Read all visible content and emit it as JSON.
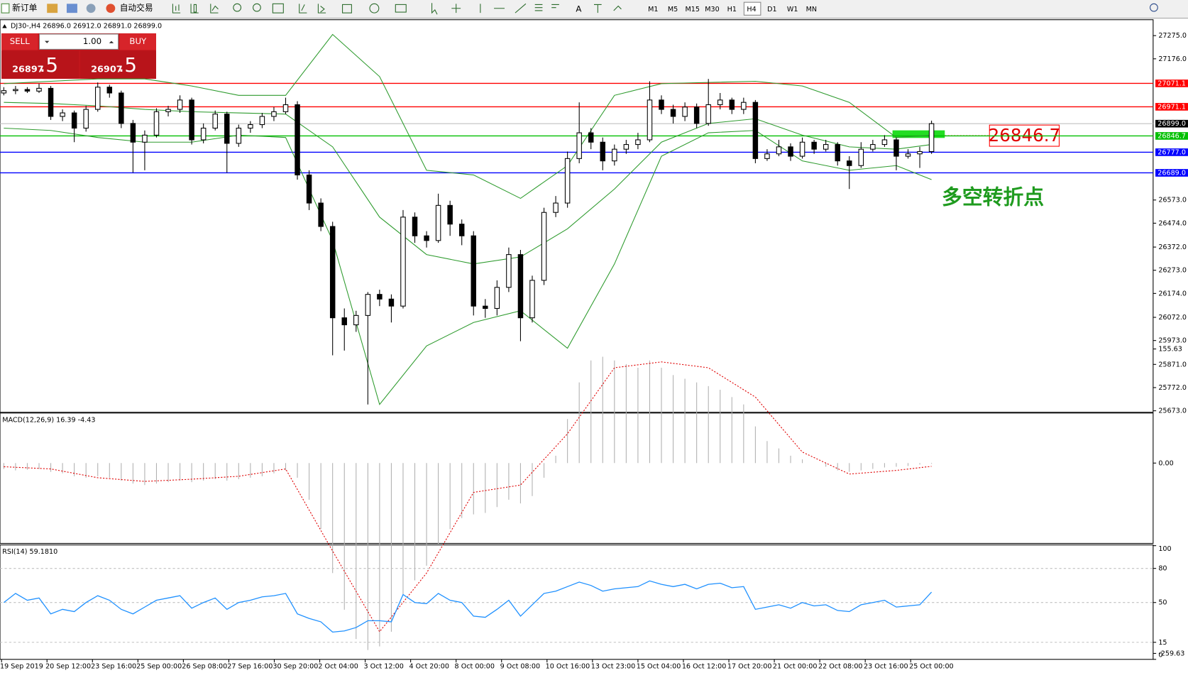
{
  "toolbar": {
    "new_order": "新订单",
    "auto_trading": "自动交易",
    "timeframes": [
      "M1",
      "M5",
      "M15",
      "M30",
      "H1",
      "H4",
      "D1",
      "W1",
      "MN"
    ]
  },
  "trade_panel": {
    "sell": "SELL",
    "buy": "BUY",
    "lots": "1.00",
    "bid_main": "26897",
    "bid_tail": ".5",
    "ask_main": "26907",
    "ask_tail": ".5"
  },
  "annotations": {
    "price_box": "26846.7",
    "note": "多空转折点"
  },
  "chart_data": {
    "type": "candlestick",
    "header": "DJ30-,H4  26896.0 26912.0 26891.0 26899.0",
    "ylim": [
      25673,
      27275
    ],
    "yticks": [
      {
        "value": 27275,
        "label": "27275.0"
      },
      {
        "value": 27176,
        "label": "27176.0"
      },
      {
        "value": 26573,
        "label": "26573.0"
      },
      {
        "value": 26474,
        "label": "26474.0"
      },
      {
        "value": 26372,
        "label": "26372.0"
      },
      {
        "value": 26273,
        "label": "26273.0"
      },
      {
        "value": 26174,
        "label": "26174.0"
      },
      {
        "value": 26072,
        "label": "26072.0"
      },
      {
        "value": 25973,
        "label": "25973.0"
      },
      {
        "value": 25871,
        "label": "25871.0"
      },
      {
        "value": 25772,
        "label": "25772.0"
      },
      {
        "value": 25673,
        "label": "25673.0"
      }
    ],
    "levels": [
      {
        "value": 27071.1,
        "label": "27071.1",
        "color": "#ff0000"
      },
      {
        "value": 26971.1,
        "label": "26971.1",
        "color": "#ff0000"
      },
      {
        "value": 26846.7,
        "label": "26846.7",
        "color": "#00c000"
      },
      {
        "value": 26777,
        "label": "26777.0",
        "color": "#0000ff"
      },
      {
        "value": 26689,
        "label": "26689.0",
        "color": "#0000ff"
      }
    ],
    "current_price": {
      "value": 26899,
      "label": "26899.0"
    },
    "x_labels": [
      "19 Sep 2019",
      "20 Sep 12:00",
      "23 Sep 16:00",
      "25 Sep 00:00",
      "26 Sep 08:00",
      "27 Sep 16:00",
      "30 Sep 20:00",
      "2 Oct 04:00",
      "3 Oct 12:00",
      "4 Oct 20:00",
      "8 Oct 00:00",
      "9 Oct 08:00",
      "10 Oct 16:00",
      "13 Oct 23:00",
      "15 Oct 04:00",
      "16 Oct 12:00",
      "17 Oct 20:00",
      "21 Oct 00:00",
      "22 Oct 08:00",
      "23 Oct 16:00",
      "25 Oct 00:00"
    ],
    "candles": [
      [
        27030,
        27055,
        27020,
        27040
      ],
      [
        27040,
        27060,
        27025,
        27045
      ],
      [
        27045,
        27055,
        27030,
        27038
      ],
      [
        27038,
        27070,
        27030,
        27050
      ],
      [
        27050,
        27060,
        26915,
        26930
      ],
      [
        26930,
        26960,
        26910,
        26945
      ],
      [
        26945,
        26955,
        26820,
        26880
      ],
      [
        26880,
        26975,
        26865,
        26960
      ],
      [
        26960,
        27075,
        26950,
        27055
      ],
      [
        27055,
        27065,
        27010,
        27030
      ],
      [
        27030,
        27040,
        26880,
        26900
      ],
      [
        26900,
        26915,
        26690,
        26820
      ],
      [
        26820,
        26870,
        26700,
        26850
      ],
      [
        26850,
        26965,
        26840,
        26950
      ],
      [
        26950,
        26975,
        26930,
        26960
      ],
      [
        26960,
        27020,
        26945,
        27000
      ],
      [
        27000,
        27010,
        26810,
        26830
      ],
      [
        26830,
        26900,
        26815,
        26880
      ],
      [
        26880,
        26955,
        26870,
        26940
      ],
      [
        26940,
        26950,
        26690,
        26815
      ],
      [
        26815,
        26895,
        26800,
        26880
      ],
      [
        26880,
        26910,
        26860,
        26895
      ],
      [
        26895,
        26945,
        26880,
        26930
      ],
      [
        26930,
        26970,
        26910,
        26950
      ],
      [
        26950,
        27010,
        26940,
        26980
      ],
      [
        26980,
        26995,
        26660,
        26680
      ],
      [
        26680,
        26700,
        26530,
        26560
      ],
      [
        26560,
        26580,
        26440,
        26460
      ],
      [
        26460,
        26480,
        25910,
        26070
      ],
      [
        26070,
        26110,
        25930,
        26040
      ],
      [
        26040,
        26100,
        26010,
        26080
      ],
      [
        26080,
        26180,
        25700,
        26170
      ],
      [
        26170,
        26190,
        26120,
        26150
      ],
      [
        26150,
        26170,
        26050,
        26120
      ],
      [
        26120,
        26530,
        26110,
        26500
      ],
      [
        26500,
        26520,
        26390,
        26420
      ],
      [
        26420,
        26440,
        26370,
        26400
      ],
      [
        26400,
        26600,
        26390,
        26550
      ],
      [
        26550,
        26570,
        26420,
        26470
      ],
      [
        26470,
        26490,
        26380,
        26420
      ],
      [
        26420,
        26440,
        26080,
        26120
      ],
      [
        26120,
        26150,
        26070,
        26110
      ],
      [
        26110,
        26230,
        26080,
        26200
      ],
      [
        26200,
        26370,
        26180,
        26340
      ],
      [
        26340,
        26360,
        25970,
        26070
      ],
      [
        26070,
        26250,
        26050,
        26230
      ],
      [
        26230,
        26540,
        26210,
        26520
      ],
      [
        26520,
        26590,
        26500,
        26560
      ],
      [
        26560,
        26780,
        26540,
        26750
      ],
      [
        26750,
        26990,
        26730,
        26860
      ],
      [
        26860,
        26880,
        26790,
        26820
      ],
      [
        26820,
        26840,
        26700,
        26740
      ],
      [
        26740,
        26810,
        26720,
        26790
      ],
      [
        26790,
        26830,
        26770,
        26810
      ],
      [
        26810,
        26860,
        26790,
        26830
      ],
      [
        26830,
        27080,
        26820,
        27000
      ],
      [
        27000,
        27020,
        26940,
        26960
      ],
      [
        26960,
        26980,
        26900,
        26930
      ],
      [
        26930,
        26990,
        26910,
        26970
      ],
      [
        26970,
        26985,
        26880,
        26900
      ],
      [
        26900,
        27090,
        26890,
        26980
      ],
      [
        26980,
        27030,
        26960,
        27000
      ],
      [
        27000,
        27010,
        26940,
        26960
      ],
      [
        26960,
        27010,
        26940,
        26990
      ],
      [
        26990,
        27000,
        26730,
        26750
      ],
      [
        26750,
        26790,
        26740,
        26770
      ],
      [
        26770,
        26830,
        26760,
        26800
      ],
      [
        26800,
        26815,
        26740,
        26760
      ],
      [
        26760,
        26840,
        26750,
        26820
      ],
      [
        26820,
        26830,
        26770,
        26790
      ],
      [
        26790,
        26830,
        26780,
        26810
      ],
      [
        26810,
        26820,
        26720,
        26740
      ],
      [
        26740,
        26760,
        26620,
        26720
      ],
      [
        26720,
        26820,
        26710,
        26790
      ],
      [
        26790,
        26830,
        26780,
        26810
      ],
      [
        26810,
        26850,
        26800,
        26830
      ],
      [
        26830,
        26840,
        26700,
        26760
      ],
      [
        26760,
        26790,
        26750,
        26770
      ],
      [
        26770,
        26800,
        26710,
        26780
      ],
      [
        26780,
        26912,
        26770,
        26899
      ]
    ],
    "sample_index": [
      0,
      4,
      8,
      12,
      16,
      20,
      24,
      28,
      32,
      36,
      40,
      44,
      48,
      52,
      56,
      60,
      64,
      68,
      72,
      76,
      79
    ],
    "bollinger": {
      "color": "#2e9b2e",
      "upper": [
        27070,
        27080,
        27090,
        27090,
        27060,
        27020,
        27020,
        27280,
        27100,
        26700,
        26680,
        26580,
        26720,
        27020,
        27070,
        27075,
        27080,
        27060,
        26990,
        26840,
        26850
      ],
      "middle": [
        26990,
        26985,
        26975,
        26960,
        26950,
        26945,
        26940,
        26800,
        26500,
        26340,
        26300,
        26330,
        26450,
        26620,
        26820,
        26900,
        26920,
        26850,
        26800,
        26790,
        26810
      ],
      "lower": [
        26880,
        26870,
        26840,
        26820,
        26820,
        26850,
        26840,
        26400,
        25700,
        25950,
        26050,
        26100,
        25940,
        26300,
        26760,
        26860,
        26870,
        26740,
        26700,
        26720,
        26660
      ]
    },
    "macd": {
      "label": "MACD(12,26,9) 16.39 -4.43",
      "ylim": [
        -259.63,
        155.63
      ],
      "yticks": [
        155.63,
        {
          "value": 0,
          "label": "0.00"
        },
        -259.63
      ],
      "histogram": [
        -8,
        -10,
        -9,
        -8,
        -12,
        -14,
        -18,
        -20,
        -18,
        -20,
        -24,
        -28,
        -30,
        -28,
        -26,
        -24,
        -26,
        -24,
        -22,
        -24,
        -22,
        -20,
        -18,
        -14,
        -10,
        -20,
        -50,
        -90,
        -150,
        -200,
        -240,
        -255,
        -250,
        -230,
        -180,
        -160,
        -140,
        -110,
        -90,
        -75,
        -70,
        -68,
        -60,
        -50,
        -55,
        -45,
        -20,
        10,
        60,
        110,
        140,
        145,
        140,
        135,
        130,
        140,
        130,
        120,
        115,
        110,
        105,
        100,
        90,
        80,
        50,
        30,
        20,
        10,
        5,
        0,
        -5,
        -10,
        -12,
        -10,
        -8,
        -6,
        -5,
        -4,
        -2,
        -1
      ],
      "signal": [
        -5,
        -8,
        -20,
        -25,
        -22,
        -18,
        -8,
        -120,
        -230,
        -150,
        -40,
        -30,
        40,
        130,
        138,
        130,
        90,
        15,
        -15,
        -10,
        -4.43
      ]
    },
    "rsi": {
      "label": "RSI(14) 59.1810",
      "ylim": [
        0,
        100
      ],
      "yticks": [
        100,
        80,
        50,
        15,
        0
      ],
      "levels": [
        80,
        50,
        15
      ],
      "color": "#1e90ff",
      "values": [
        50,
        58,
        52,
        54,
        40,
        44,
        42,
        50,
        56,
        52,
        44,
        40,
        46,
        52,
        54,
        56,
        45,
        50,
        54,
        44,
        50,
        52,
        55,
        56,
        58,
        40,
        36,
        33,
        24,
        25,
        28,
        34,
        34,
        33,
        57,
        50,
        49,
        58,
        52,
        50,
        38,
        37,
        44,
        52,
        38,
        48,
        58,
        60,
        64,
        68,
        65,
        60,
        62,
        63,
        64,
        69,
        66,
        64,
        66,
        62,
        66,
        67,
        63,
        64,
        44,
        46,
        48,
        45,
        50,
        47,
        48,
        43,
        42,
        48,
        50,
        52,
        46,
        47,
        48,
        59.181
      ]
    }
  }
}
